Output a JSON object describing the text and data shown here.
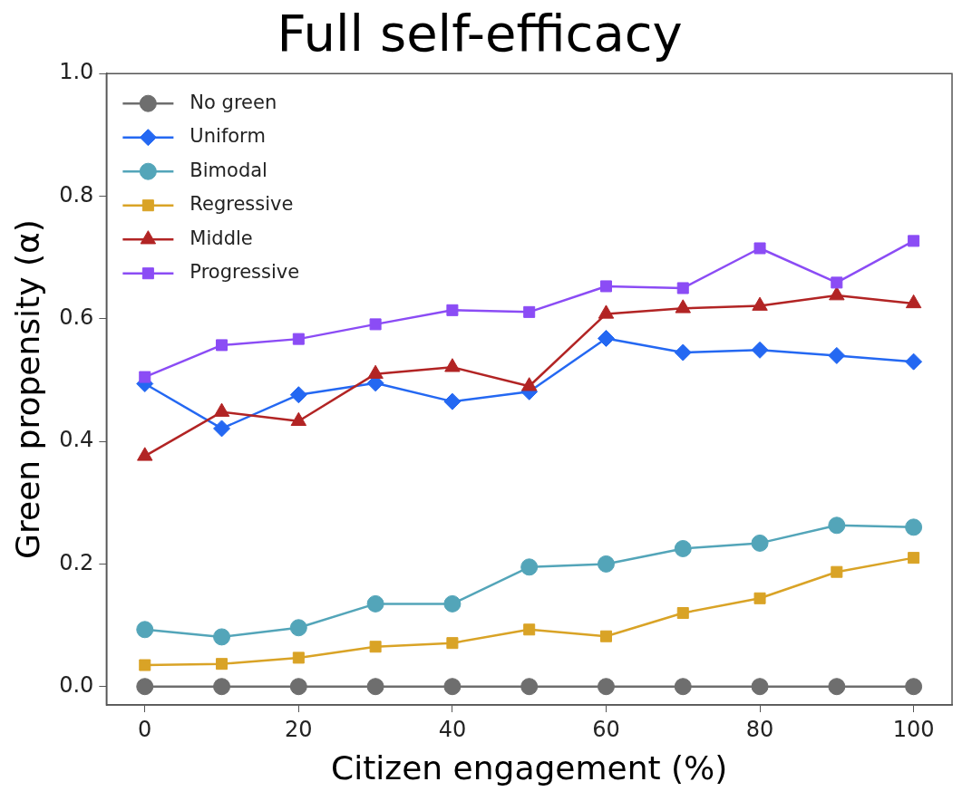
{
  "chart_data": {
    "type": "line",
    "title": "Full self-efficacy",
    "xlabel": "Citizen engagement (%)",
    "ylabel": "Green propensity (α)",
    "x": [
      0,
      10,
      20,
      30,
      40,
      50,
      60,
      70,
      80,
      90,
      100
    ],
    "xlim": [
      -5,
      105
    ],
    "xticks": [
      0,
      20,
      40,
      60,
      80,
      100
    ],
    "ylim": [
      -0.03,
      1.0
    ],
    "yticks": [
      {
        "value": 0,
        "label": "0.0"
      },
      0.2,
      0.4,
      0.6,
      0.8,
      {
        "value": 1,
        "label": "1.0"
      }
    ],
    "grid": false,
    "legend": "top left",
    "series": [
      {
        "name": "No green",
        "color": "#6e6e6e",
        "marker": "circle",
        "values": [
          0,
          0,
          0,
          0,
          0,
          0,
          0,
          0,
          0,
          0,
          0
        ]
      },
      {
        "name": "Uniform",
        "color": "#2468f2",
        "marker": "diamond",
        "values": [
          0.494,
          0.421,
          0.476,
          0.495,
          0.465,
          0.481,
          0.568,
          0.545,
          0.549,
          0.54,
          0.53
        ]
      },
      {
        "name": "Bimodal",
        "color": "#53a5b9",
        "marker": "circle",
        "values": [
          0.093,
          0.081,
          0.096,
          0.135,
          0.135,
          0.195,
          0.2,
          0.225,
          0.234,
          0.263,
          0.26
        ]
      },
      {
        "name": "Regressive",
        "color": "#d9a326",
        "marker": "square",
        "values": [
          0.035,
          0.037,
          0.047,
          0.065,
          0.071,
          0.093,
          0.082,
          0.12,
          0.144,
          0.187,
          0.21
        ]
      },
      {
        "name": "Middle",
        "color": "#b22424",
        "marker": "triangle",
        "values": [
          0.376,
          0.448,
          0.433,
          0.51,
          0.521,
          0.49,
          0.608,
          0.617,
          0.621,
          0.638,
          0.625
        ]
      },
      {
        "name": "Progressive",
        "color": "#8b4cf5",
        "marker": "square",
        "values": [
          0.505,
          0.557,
          0.567,
          0.591,
          0.614,
          0.611,
          0.653,
          0.65,
          0.715,
          0.659,
          0.727
        ]
      }
    ]
  }
}
